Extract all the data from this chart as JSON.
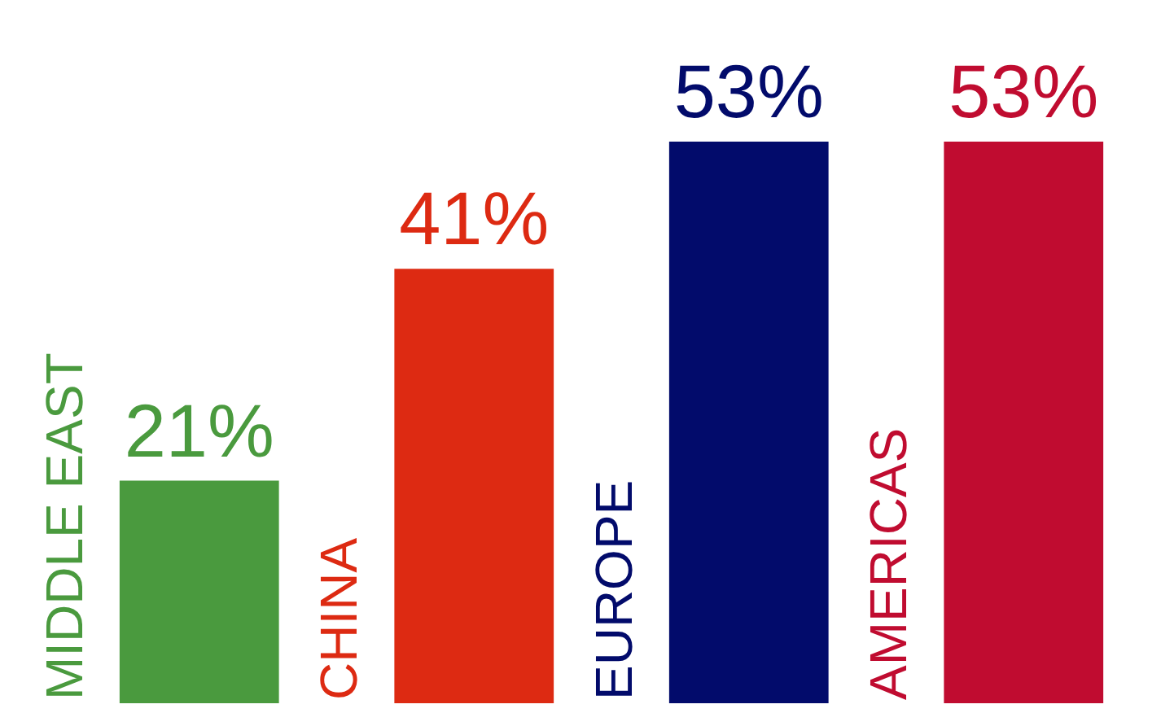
{
  "chart_data": {
    "type": "bar",
    "categories": [
      "MIDDLE EAST",
      "CHINA",
      "EUROPE",
      "AMERICAS"
    ],
    "values": [
      21,
      41,
      53,
      53
    ],
    "colors": [
      "#4a9a3e",
      "#dd2a12",
      "#020b6b",
      "#c00c30"
    ],
    "value_labels": [
      "21%",
      "41%",
      "53%",
      "53%"
    ],
    "tick_labels": "x"
  }
}
